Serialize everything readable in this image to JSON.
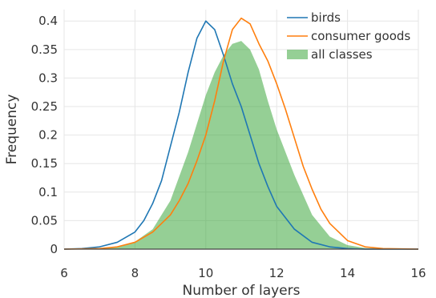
{
  "chart_data": {
    "type": "line",
    "title": "",
    "xlabel": "Number of layers",
    "ylabel": "Frequency",
    "xlim": [
      6,
      16
    ],
    "ylim": [
      0,
      0.42
    ],
    "xticks": [
      6,
      8,
      10,
      12,
      14,
      16
    ],
    "yticks": [
      0,
      0.05,
      0.1,
      0.15,
      0.2,
      0.25,
      0.3,
      0.35,
      0.4
    ],
    "ytick_labels": [
      "0",
      "0.05",
      "0.1",
      "0.15",
      "0.2",
      "0.25",
      "0.3",
      "0.35",
      "0.4"
    ],
    "grid": true,
    "legend_position": "top-right",
    "series": [
      {
        "name": "birds",
        "kind": "line",
        "color": "#1f77b4",
        "x": [
          6,
          6.5,
          7,
          7.5,
          8,
          8.25,
          8.5,
          8.75,
          9,
          9.25,
          9.5,
          9.75,
          10,
          10.25,
          10.5,
          10.75,
          11,
          11.25,
          11.5,
          11.75,
          12,
          12.5,
          13,
          13.5,
          14,
          14.5,
          15,
          16
        ],
        "y": [
          0,
          0.001,
          0.004,
          0.012,
          0.03,
          0.05,
          0.08,
          0.12,
          0.18,
          0.24,
          0.31,
          0.37,
          0.4,
          0.385,
          0.34,
          0.29,
          0.25,
          0.2,
          0.15,
          0.11,
          0.075,
          0.035,
          0.012,
          0.004,
          0.001,
          0,
          0,
          0
        ]
      },
      {
        "name": "consumer goods",
        "kind": "line",
        "color": "#ff7f0e",
        "x": [
          6,
          7,
          7.5,
          8,
          8.5,
          9,
          9.25,
          9.5,
          9.75,
          10,
          10.25,
          10.5,
          10.75,
          11,
          11.25,
          11.5,
          11.75,
          12,
          12.25,
          12.5,
          12.75,
          13,
          13.25,
          13.5,
          14,
          14.5,
          15,
          16
        ],
        "y": [
          0,
          0.001,
          0.004,
          0.012,
          0.03,
          0.06,
          0.085,
          0.115,
          0.155,
          0.2,
          0.26,
          0.33,
          0.385,
          0.405,
          0.395,
          0.36,
          0.33,
          0.29,
          0.245,
          0.195,
          0.145,
          0.105,
          0.07,
          0.045,
          0.015,
          0.004,
          0.001,
          0
        ]
      },
      {
        "name": "all classes",
        "kind": "area",
        "color": "#2ca02c",
        "x": [
          6,
          7,
          7.5,
          8,
          8.5,
          9,
          9.5,
          10,
          10.25,
          10.5,
          10.75,
          11,
          11.25,
          11.5,
          11.75,
          12,
          12.5,
          13,
          13.5,
          14,
          14.5,
          15,
          16
        ],
        "y": [
          0,
          0.001,
          0.004,
          0.013,
          0.035,
          0.085,
          0.17,
          0.27,
          0.31,
          0.34,
          0.36,
          0.365,
          0.35,
          0.315,
          0.26,
          0.21,
          0.13,
          0.06,
          0.022,
          0.007,
          0.002,
          0,
          0
        ]
      }
    ]
  }
}
